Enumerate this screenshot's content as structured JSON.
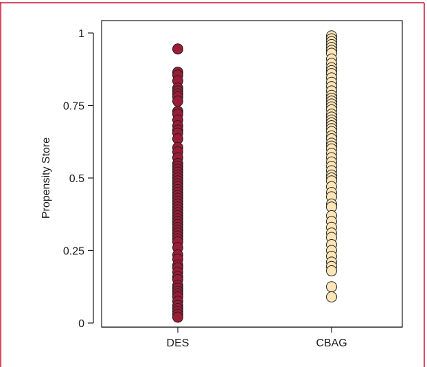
{
  "chart_data": {
    "type": "scatter",
    "title": "",
    "xlabel": "",
    "ylabel": "Propensity Store",
    "categories": [
      "DES",
      "CBAG"
    ],
    "ylim": [
      0,
      1
    ],
    "yticks": [
      0,
      0.25,
      0.5,
      0.75,
      1
    ],
    "ytick_labels": [
      "0",
      "0.25",
      "0.5",
      "0.75",
      "1"
    ],
    "grid": false,
    "legend": "none",
    "colors": {
      "DES": "#9b1c35",
      "CBAG": "#fde5b8",
      "marker_edge": "#222222",
      "frame": "#c8102e"
    },
    "series": [
      {
        "category": "DES",
        "values": [
          0.945,
          0.865,
          0.855,
          0.835,
          0.81,
          0.8,
          0.79,
          0.78,
          0.765,
          0.73,
          0.72,
          0.7,
          0.68,
          0.665,
          0.655,
          0.635,
          0.605,
          0.59,
          0.57,
          0.55,
          0.54,
          0.53,
          0.52,
          0.51,
          0.5,
          0.49,
          0.48,
          0.47,
          0.46,
          0.45,
          0.44,
          0.43,
          0.42,
          0.41,
          0.4,
          0.39,
          0.38,
          0.37,
          0.36,
          0.35,
          0.34,
          0.33,
          0.32,
          0.31,
          0.3,
          0.29,
          0.28,
          0.26,
          0.235,
          0.22,
          0.2,
          0.19,
          0.175,
          0.16,
          0.15,
          0.13,
          0.12,
          0.11,
          0.1,
          0.09,
          0.075,
          0.06,
          0.05,
          0.04,
          0.03,
          0.02
        ]
      },
      {
        "category": "CBAG",
        "values": [
          0.99,
          0.98,
          0.97,
          0.96,
          0.95,
          0.94,
          0.93,
          0.91,
          0.895,
          0.88,
          0.87,
          0.86,
          0.845,
          0.83,
          0.815,
          0.8,
          0.785,
          0.775,
          0.765,
          0.755,
          0.745,
          0.735,
          0.72,
          0.71,
          0.7,
          0.69,
          0.68,
          0.67,
          0.66,
          0.645,
          0.635,
          0.62,
          0.61,
          0.6,
          0.585,
          0.57,
          0.555,
          0.54,
          0.525,
          0.51,
          0.5,
          0.49,
          0.47,
          0.45,
          0.435,
          0.41,
          0.4,
          0.37,
          0.35,
          0.33,
          0.31,
          0.295,
          0.27,
          0.25,
          0.23,
          0.21,
          0.195,
          0.18,
          0.125,
          0.09
        ]
      }
    ]
  }
}
